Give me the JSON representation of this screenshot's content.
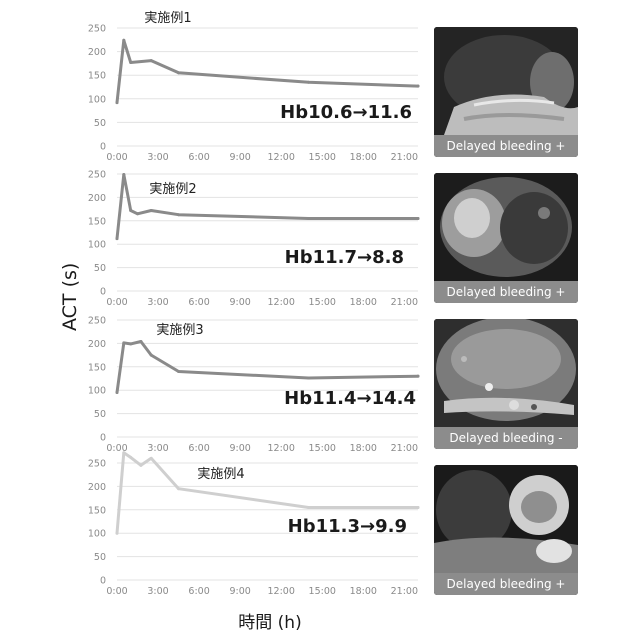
{
  "ylabel": "ACT (s)",
  "xlabel": "時間 (h)",
  "chart_data": [
    {
      "type": "line",
      "title": "実施例1",
      "annotation": "Hb10.6→11.6",
      "color": "#8a8a8a",
      "x": [
        "0:00",
        "0:30",
        "1:00",
        "2:30",
        "4:30",
        "14:00",
        "22:00"
      ],
      "y": [
        92,
        224,
        177,
        181,
        155,
        135,
        127
      ],
      "ylim": [
        0,
        250
      ],
      "yticks": [
        0,
        50,
        100,
        150,
        200,
        250
      ],
      "xticks": [
        "0:00",
        "3:00",
        "6:00",
        "9:00",
        "12:00",
        "15:00",
        "18:00",
        "21:00"
      ],
      "grid": true,
      "photo_caption": "Delayed bleeding +"
    },
    {
      "type": "line",
      "title": "実施例2",
      "annotation": "Hb11.7→8.8",
      "color": "#8a8a8a",
      "x": [
        "0:00",
        "0:30",
        "1:00",
        "1:30",
        "2:30",
        "4:30",
        "14:00",
        "22:00"
      ],
      "y": [
        112,
        249,
        172,
        165,
        172,
        163,
        155,
        155
      ],
      "ylim": [
        0,
        250
      ],
      "yticks": [
        0,
        50,
        100,
        150,
        200,
        250
      ],
      "xticks": [
        "0:00",
        "3:00",
        "6:00",
        "9:00",
        "12:00",
        "15:00",
        "18:00",
        "21:00"
      ],
      "grid": true,
      "photo_caption": "Delayed bleeding +"
    },
    {
      "type": "line",
      "title": "実施例3",
      "annotation": "Hb11.4→14.4",
      "color": "#8a8a8a",
      "x": [
        "0:00",
        "0:30",
        "1:00",
        "1:45",
        "2:30",
        "4:30",
        "14:00",
        "22:00"
      ],
      "y": [
        95,
        201,
        199,
        204,
        175,
        140,
        126,
        130
      ],
      "ylim": [
        0,
        250
      ],
      "yticks": [
        0,
        50,
        100,
        150,
        200,
        250
      ],
      "xticks": [
        "0:00",
        "3:00",
        "6:00",
        "9:00",
        "12:00",
        "15:00",
        "18:00",
        "21:00"
      ],
      "grid": true,
      "photo_caption": "Delayed bleeding -"
    },
    {
      "type": "line",
      "title": "実施例4",
      "annotation": "Hb11.3→9.9",
      "color": "#cfcfcf",
      "x": [
        "0:00",
        "0:30",
        "1:00",
        "1:45",
        "2:30",
        "4:30",
        "14:00",
        "22:00"
      ],
      "y": [
        100,
        272,
        262,
        245,
        260,
        195,
        155,
        155
      ],
      "ylim": [
        0,
        250
      ],
      "yticks": [
        0,
        50,
        100,
        150,
        200,
        250
      ],
      "xticks": [
        "0:00",
        "3:00",
        "6:00",
        "9:00",
        "12:00",
        "15:00",
        "18:00",
        "21:00"
      ],
      "grid": true,
      "photo_caption": "Delayed bleeding +"
    }
  ]
}
